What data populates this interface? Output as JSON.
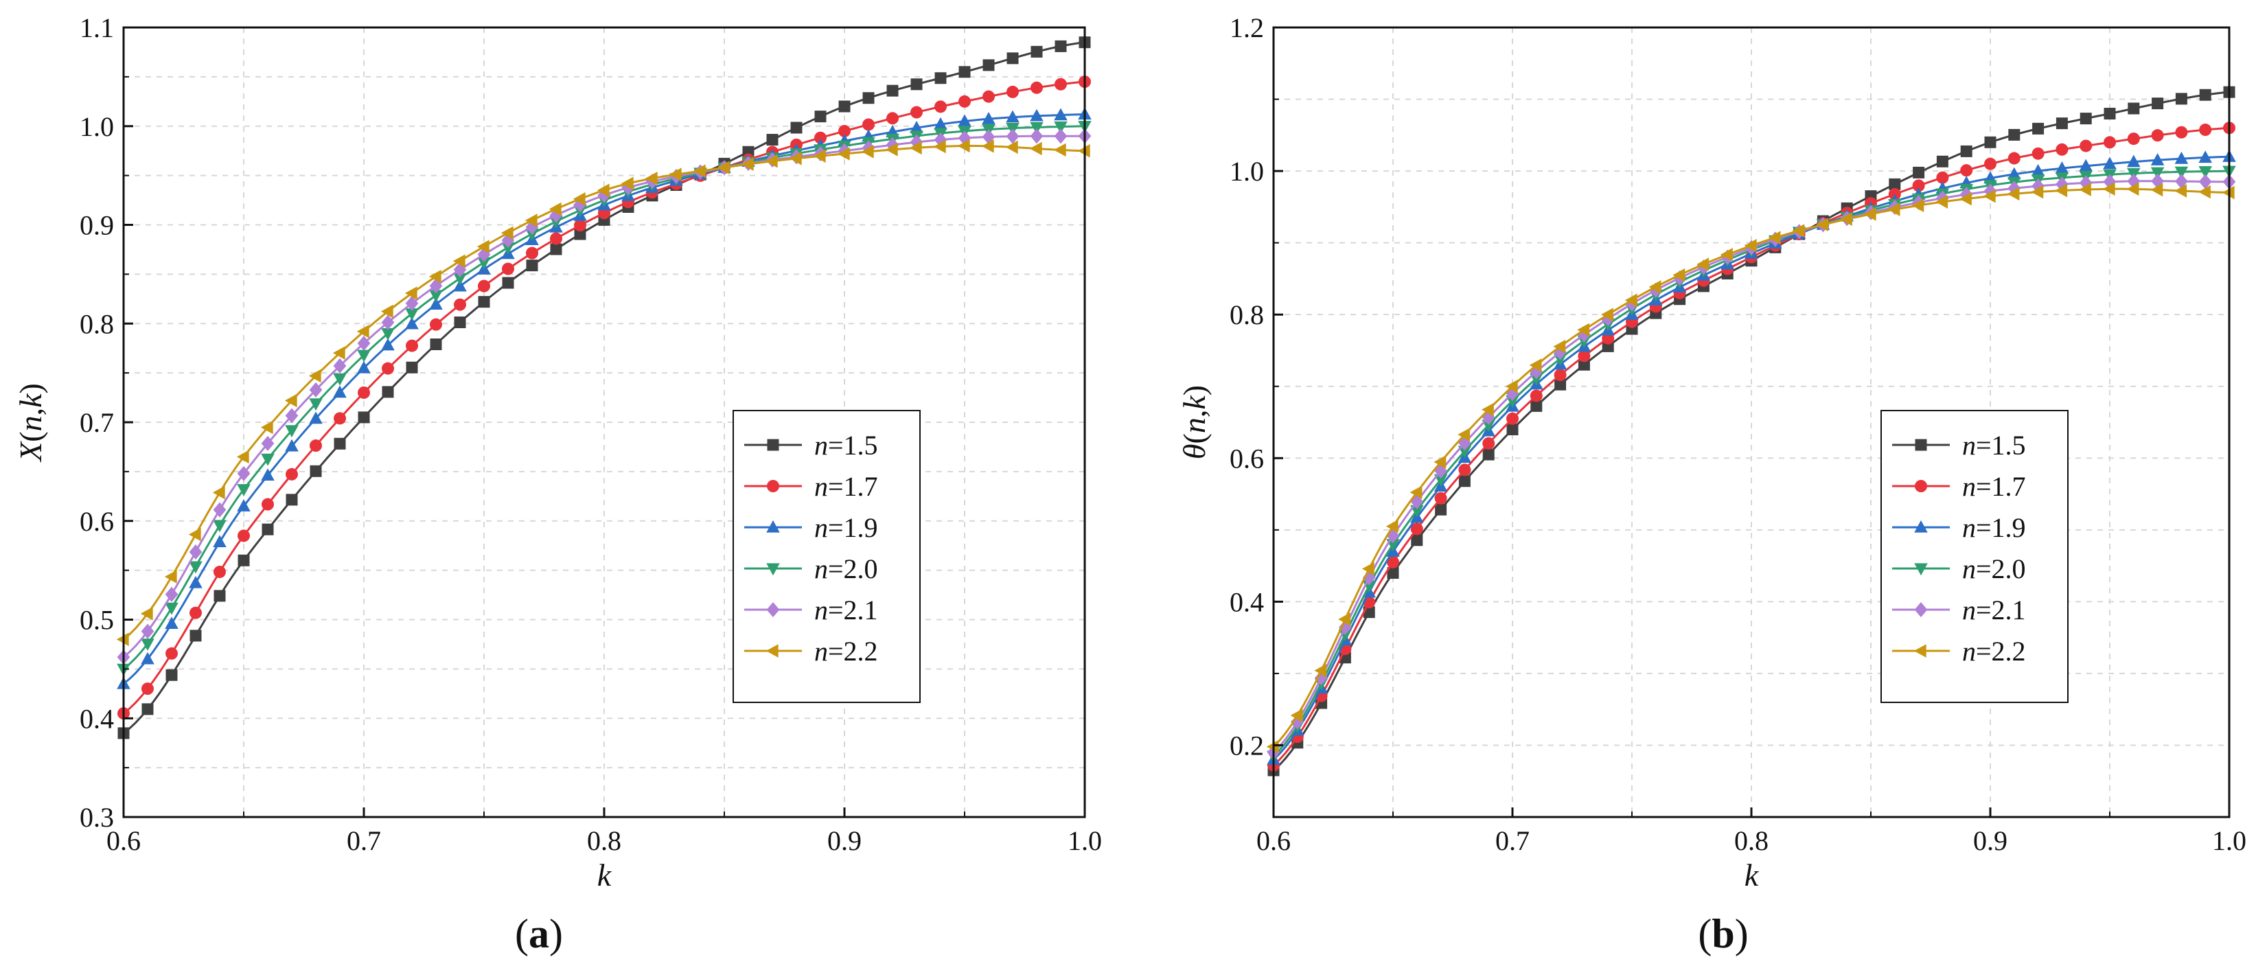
{
  "chart_data": [
    {
      "type": "line",
      "panel_label": "(a)",
      "panel_letter": "a",
      "ylabel": "X(n,k)",
      "ylabel_func": "X",
      "ylabel_args": "n,k",
      "xlabel": "k",
      "xlim": [
        0.6,
        1.0
      ],
      "ylim": [
        0.3,
        1.1
      ],
      "xticks": [
        0.6,
        0.7,
        0.8,
        0.9,
        1.0
      ],
      "xtick_labels": [
        "0.6",
        "0.7",
        "0.8",
        "0.9",
        "1.0"
      ],
      "yticks": [
        0.3,
        0.4,
        0.5,
        0.6,
        0.7,
        0.8,
        0.9,
        1.0,
        1.1
      ],
      "ytick_labels": [
        "0.3",
        "0.4",
        "0.5",
        "0.6",
        "0.7",
        "0.8",
        "0.9",
        "1.0",
        "1.1"
      ],
      "grid": true,
      "legend_position": "center-right",
      "x": [
        0.6,
        0.65,
        0.7,
        0.75,
        0.8,
        0.85,
        0.9,
        0.95,
        1.0
      ],
      "series": [
        {
          "name": "n=1.5",
          "n_value": "1.5",
          "color": "#404040",
          "marker": "square",
          "values": [
            0.385,
            0.56,
            0.705,
            0.822,
            0.905,
            0.962,
            1.02,
            1.055,
            1.085
          ]
        },
        {
          "name": "n=1.7",
          "n_value": "1.7",
          "color": "#e8333a",
          "marker": "circle",
          "values": [
            0.405,
            0.585,
            0.73,
            0.838,
            0.912,
            0.958,
            0.995,
            1.025,
            1.045
          ]
        },
        {
          "name": "n=1.9",
          "n_value": "1.9",
          "color": "#2c6fc7",
          "marker": "triangle-up",
          "values": [
            0.435,
            0.615,
            0.755,
            0.855,
            0.92,
            0.958,
            0.985,
            1.005,
            1.012
          ]
        },
        {
          "name": "n=2.0",
          "n_value": "2.0",
          "color": "#2e9e6e",
          "marker": "triangle-down",
          "values": [
            0.45,
            0.632,
            0.768,
            0.862,
            0.925,
            0.958,
            0.98,
            0.995,
            1.0
          ]
        },
        {
          "name": "n=2.1",
          "n_value": "2.1",
          "color": "#b07fd6",
          "marker": "diamond",
          "values": [
            0.462,
            0.648,
            0.78,
            0.87,
            0.93,
            0.958,
            0.975,
            0.988,
            0.99
          ]
        },
        {
          "name": "n=2.2",
          "n_value": "2.2",
          "color": "#c9960f",
          "marker": "triangle-left",
          "values": [
            0.48,
            0.665,
            0.792,
            0.878,
            0.935,
            0.958,
            0.972,
            0.98,
            0.975
          ]
        }
      ]
    },
    {
      "type": "line",
      "panel_label": "(b)",
      "panel_letter": "b",
      "ylabel": "θ(n,k)",
      "ylabel_func": "θ",
      "ylabel_args": "n,k",
      "xlabel": "k",
      "xlim": [
        0.6,
        1.0
      ],
      "ylim": [
        0.1,
        1.2
      ],
      "xticks": [
        0.6,
        0.7,
        0.8,
        0.9,
        1.0
      ],
      "xtick_labels": [
        "0.6",
        "0.7",
        "0.8",
        "0.9",
        "1.0"
      ],
      "yticks": [
        0.2,
        0.4,
        0.6,
        0.8,
        1.0,
        1.2
      ],
      "ytick_labels": [
        "0.2",
        "0.4",
        "0.6",
        "0.8",
        "1.0",
        "1.2"
      ],
      "grid": true,
      "legend_position": "center-right",
      "x": [
        0.6,
        0.65,
        0.7,
        0.75,
        0.8,
        0.85,
        0.9,
        0.95,
        1.0
      ],
      "series": [
        {
          "name": "n=1.5",
          "n_value": "1.5",
          "color": "#404040",
          "marker": "square",
          "values": [
            0.165,
            0.44,
            0.64,
            0.78,
            0.875,
            0.965,
            1.04,
            1.08,
            1.11
          ]
        },
        {
          "name": "n=1.7",
          "n_value": "1.7",
          "color": "#e8333a",
          "marker": "circle",
          "values": [
            0.172,
            0.455,
            0.655,
            0.79,
            0.88,
            0.955,
            1.01,
            1.04,
            1.06
          ]
        },
        {
          "name": "n=1.9",
          "n_value": "1.9",
          "color": "#2c6fc7",
          "marker": "triangle-up",
          "values": [
            0.18,
            0.47,
            0.672,
            0.8,
            0.885,
            0.948,
            0.99,
            1.01,
            1.02
          ]
        },
        {
          "name": "n=2.0",
          "n_value": "2.0",
          "color": "#2e9e6e",
          "marker": "triangle-down",
          "values": [
            0.185,
            0.48,
            0.68,
            0.808,
            0.89,
            0.945,
            0.98,
            0.995,
            1.0
          ]
        },
        {
          "name": "n=2.1",
          "n_value": "2.1",
          "color": "#b07fd6",
          "marker": "diamond",
          "values": [
            0.19,
            0.492,
            0.69,
            0.815,
            0.893,
            0.942,
            0.972,
            0.985,
            0.985
          ]
        },
        {
          "name": "n=2.2",
          "n_value": "2.2",
          "color": "#c9960f",
          "marker": "triangle-left",
          "values": [
            0.198,
            0.505,
            0.7,
            0.82,
            0.896,
            0.94,
            0.965,
            0.975,
            0.97
          ]
        }
      ]
    }
  ]
}
